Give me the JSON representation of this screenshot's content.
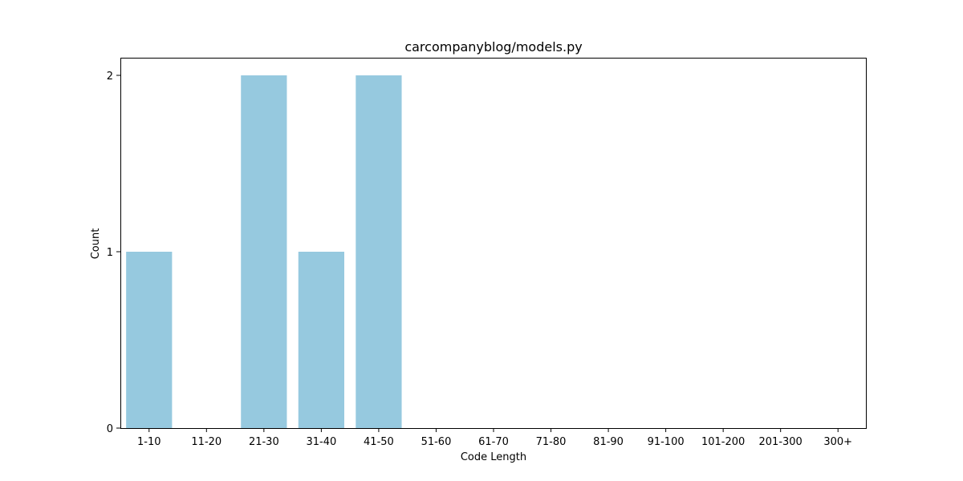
{
  "chart_data": {
    "type": "bar",
    "title": "carcompanyblog/models.py",
    "xlabel": "Code Length",
    "ylabel": "Count",
    "categories": [
      "1-10",
      "11-20",
      "21-30",
      "31-40",
      "41-50",
      "51-60",
      "61-70",
      "71-80",
      "81-90",
      "91-100",
      "101-200",
      "201-300",
      "300+"
    ],
    "values": [
      1,
      0,
      2,
      1,
      2,
      0,
      0,
      0,
      0,
      0,
      0,
      0,
      0
    ],
    "ylim": [
      0,
      2.1
    ],
    "yticks": [
      "0",
      "1",
      "2"
    ],
    "bar_color": "#96c9df",
    "grid": false,
    "legend": "none"
  }
}
